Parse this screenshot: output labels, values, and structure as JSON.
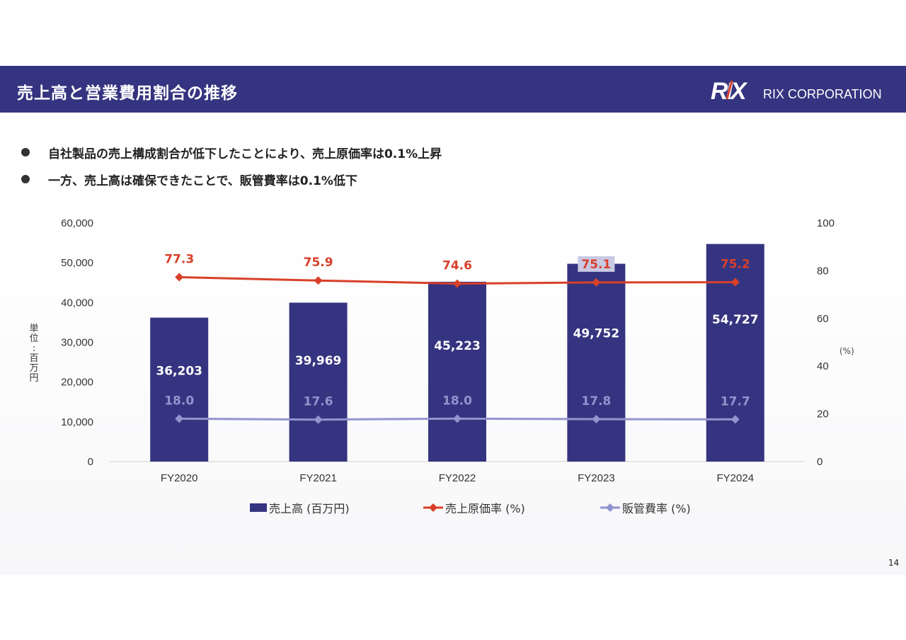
{
  "header": {
    "title": "売上高と営業費用割合の推移",
    "company": "RIX CORPORATION",
    "logo_mark": "RIX"
  },
  "bullets": [
    "自社製品の売上構成割合が低下したことにより、売上原価率は0.1%上昇",
    "一方、売上高は確保できたことで、販管費率は0.1%低下"
  ],
  "page_number": "14",
  "colors": {
    "header_bg": "#353480",
    "bar": "#353480",
    "cost_rate": "#d9402a",
    "sga_rate": "#9393cf",
    "logo_accent": "#d9402a"
  },
  "chart_data": {
    "type": "bar",
    "categories": [
      "FY2020",
      "FY2021",
      "FY2022",
      "FY2023",
      "FY2024"
    ],
    "series": [
      {
        "name": "売上高 (百万円)",
        "type": "bar",
        "axis": "left",
        "values": [
          36203,
          39969,
          45223,
          49752,
          54727
        ],
        "labels": [
          "36,203",
          "39,969",
          "45,223",
          "49,752",
          "54,727"
        ]
      },
      {
        "name": "売上原価率 (%)",
        "type": "line",
        "axis": "right",
        "values": [
          77.3,
          75.9,
          74.6,
          75.1,
          75.2
        ],
        "labels": [
          "77.3",
          "75.9",
          "74.6",
          "75.1",
          "75.2"
        ]
      },
      {
        "name": "販管費率 (%)",
        "type": "line",
        "axis": "right",
        "values": [
          18.0,
          17.6,
          18.0,
          17.8,
          17.7
        ],
        "labels": [
          "18.0",
          "17.6",
          "18.0",
          "17.8",
          "17.7"
        ]
      }
    ],
    "left_axis": {
      "label": "単位：百万円",
      "ylim": [
        0,
        60000
      ],
      "ticks": [
        "0",
        "10,000",
        "20,000",
        "30,000",
        "40,000",
        "50,000",
        "60,000"
      ]
    },
    "right_axis": {
      "label": "(%)",
      "ylim": [
        0,
        100
      ],
      "ticks": [
        "0",
        "20",
        "40",
        "60",
        "80",
        "100"
      ]
    },
    "grid": false,
    "legend_position": "bottom"
  }
}
